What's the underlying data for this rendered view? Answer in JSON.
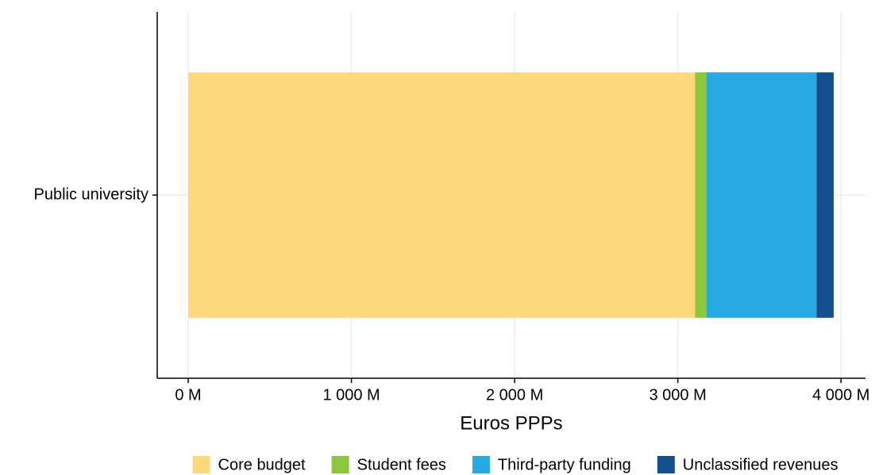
{
  "chart_data": {
    "type": "stacked_barh",
    "categories": [
      "Public university"
    ],
    "series": [
      {
        "name": "Core budget",
        "color": "#FDD97C",
        "values": [
          3105
        ]
      },
      {
        "name": "Student fees",
        "color": "#8DC63F",
        "values": [
          70
        ]
      },
      {
        "name": "Third-party funding",
        "color": "#29A9E1",
        "values": [
          675
        ]
      },
      {
        "name": "Unclassified revenues",
        "color": "#134F8F",
        "values": [
          105
        ]
      }
    ],
    "xlabel": "Euros PPPs",
    "xlim": [
      -190,
      4150
    ],
    "xticks": [
      {
        "value": 0,
        "label": "0 M"
      },
      {
        "value": 1000,
        "label": "1 000 M"
      },
      {
        "value": 2000,
        "label": "2 000 M"
      },
      {
        "value": 3000,
        "label": "3 000 M"
      },
      {
        "value": 4000,
        "label": "4 000 M"
      }
    ],
    "grid": true,
    "legend": "bottom"
  }
}
